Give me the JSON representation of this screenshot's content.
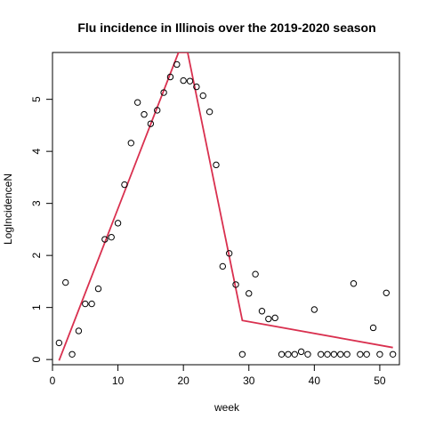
{
  "chart_data": {
    "type": "scatter",
    "title": "Flu incidence in Illinois over the 2019-2020 season",
    "xlabel": "week",
    "ylabel": "LogIncidenceN",
    "xlim": [
      0,
      53
    ],
    "ylim": [
      -0.1,
      5.9
    ],
    "xticks": [
      0,
      10,
      20,
      30,
      40,
      50
    ],
    "yticks": [
      0,
      1,
      2,
      3,
      4,
      5
    ],
    "points": {
      "x": [
        1,
        2,
        3,
        4,
        5,
        6,
        7,
        8,
        9,
        10,
        11,
        12,
        13,
        14,
        15,
        16,
        17,
        18,
        19,
        20,
        21,
        22,
        23,
        24,
        25,
        26,
        27,
        28,
        29,
        30,
        31,
        32,
        33,
        34,
        35,
        36,
        37,
        38,
        39,
        40,
        41,
        42,
        43,
        44,
        45,
        46,
        47,
        48,
        49,
        50,
        51,
        52
      ],
      "y": [
        0.32,
        1.48,
        0.1,
        0.55,
        1.07,
        1.07,
        1.36,
        2.31,
        2.35,
        2.62,
        3.36,
        4.16,
        4.94,
        4.71,
        4.53,
        4.79,
        5.13,
        5.43,
        5.67,
        5.36,
        5.35,
        5.24,
        5.07,
        4.76,
        3.74,
        1.79,
        2.04,
        1.44,
        0.1,
        1.27,
        1.64,
        0.93,
        0.78,
        0.8,
        0.1,
        0.1,
        0.1,
        0.15,
        0.1,
        0.96,
        0.1,
        0.1,
        0.1,
        0.1,
        0.1,
        1.46,
        0.1,
        0.1,
        0.61,
        0.1,
        1.28,
        0.1
      ]
    },
    "fit_line": {
      "color": "#d9304f",
      "x": [
        1,
        19.25,
        20.65,
        29,
        52
      ],
      "y": [
        -0.02,
        5.9,
        5.9,
        0.75,
        0.23
      ]
    }
  }
}
